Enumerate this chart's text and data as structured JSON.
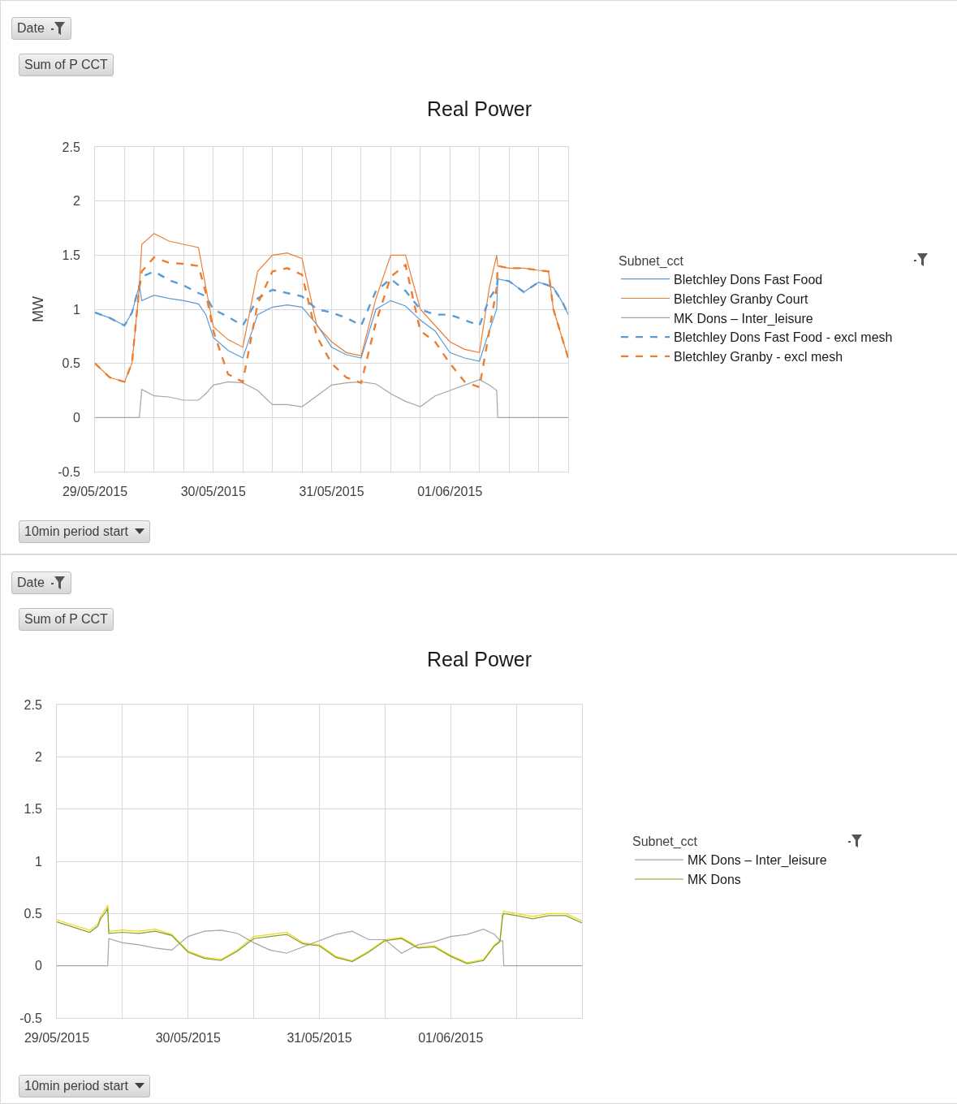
{
  "chart_data": [
    {
      "type": "line",
      "title": "Real Power",
      "ylabel": "MW",
      "legend_title": "Subnet_cct",
      "legend": "right",
      "grid": true,
      "annotations": [
        "Date",
        "Sum of P CCT",
        "10min period start"
      ],
      "x": [
        "2015-05-29T00:00",
        "2015-05-29T03:00",
        "2015-05-29T06:00",
        "2015-05-29T07:30",
        "2015-05-29T09:00",
        "2015-05-29T09:30",
        "2015-05-29T12:00",
        "2015-05-29T15:00",
        "2015-05-29T18:00",
        "2015-05-29T21:00",
        "2015-05-29T22:30",
        "2015-05-30T00:00",
        "2015-05-30T03:00",
        "2015-05-30T06:00",
        "2015-05-30T09:00",
        "2015-05-30T12:00",
        "2015-05-30T15:00",
        "2015-05-30T18:00",
        "2015-05-30T21:00",
        "2015-05-31T00:00",
        "2015-05-31T03:00",
        "2015-05-31T06:00",
        "2015-05-31T09:00",
        "2015-05-31T12:00",
        "2015-05-31T15:00",
        "2015-05-31T18:00",
        "2015-05-31T21:00",
        "2015-06-01T00:00",
        "2015-06-01T03:00",
        "2015-06-01T06:00",
        "2015-06-01T08:00",
        "2015-06-01T09:30",
        "2015-06-01T09:42",
        "2015-06-01T12:00",
        "2015-06-01T15:00",
        "2015-06-01T18:00",
        "2015-06-01T20:00",
        "2015-06-01T21:00",
        "2015-06-01T23:00",
        "2015-06-02T00:00"
      ],
      "xlim": [
        "2015-05-29T00:00",
        "2015-06-02T00:00"
      ],
      "xticks": [
        {
          "value": "2015-05-29T00:00",
          "label": "29/05/2015"
        },
        {
          "value": "2015-05-29T06:00",
          "label": null
        },
        {
          "value": "2015-05-29T12:00",
          "label": null
        },
        {
          "value": "2015-05-29T18:00",
          "label": null
        },
        {
          "value": "2015-05-30T00:00",
          "label": "30/05/2015"
        },
        {
          "value": "2015-05-30T06:00",
          "label": null
        },
        {
          "value": "2015-05-30T12:00",
          "label": null
        },
        {
          "value": "2015-05-30T18:00",
          "label": null
        },
        {
          "value": "2015-05-31T00:00",
          "label": "31/05/2015"
        },
        {
          "value": "2015-05-31T06:00",
          "label": null
        },
        {
          "value": "2015-05-31T12:00",
          "label": null
        },
        {
          "value": "2015-05-31T18:00",
          "label": null
        },
        {
          "value": "2015-06-01T00:00",
          "label": "01/06/2015"
        },
        {
          "value": "2015-06-01T06:00",
          "label": null
        },
        {
          "value": "2015-06-01T12:00",
          "label": null
        },
        {
          "value": "2015-06-01T18:00",
          "label": null
        },
        {
          "value": "2015-06-02T00:00",
          "label": null
        }
      ],
      "ylim": [
        -0.5,
        2.5
      ],
      "yticks": [
        -0.5,
        0,
        0.5,
        1,
        1.5,
        2,
        2.5
      ],
      "series": [
        {
          "name": "Bletchley Dons Fast Food",
          "color": "#5b9bd5",
          "line_style": "solid",
          "values": [
            0.97,
            0.92,
            0.85,
            0.97,
            1.22,
            1.08,
            1.13,
            1.1,
            1.08,
            1.05,
            0.95,
            0.74,
            0.62,
            0.55,
            0.95,
            1.02,
            1.04,
            1.02,
            0.86,
            0.65,
            0.58,
            0.55,
            1.0,
            1.08,
            1.03,
            0.9,
            0.8,
            0.6,
            0.55,
            0.52,
            0.8,
            1.0,
            1.28,
            1.26,
            1.16,
            1.25,
            1.22,
            1.2,
            1.05,
            0.95
          ]
        },
        {
          "name": "Bletchley Granby Court",
          "color": "#ed7d31",
          "line_style": "solid",
          "values": [
            0.5,
            0.37,
            0.33,
            0.5,
            1.2,
            1.6,
            1.7,
            1.63,
            1.6,
            1.57,
            1.2,
            0.84,
            0.72,
            0.65,
            1.35,
            1.5,
            1.52,
            1.47,
            0.85,
            0.7,
            0.6,
            0.57,
            1.1,
            1.5,
            1.5,
            1.0,
            0.85,
            0.7,
            0.63,
            0.6,
            1.2,
            1.5,
            1.4,
            1.38,
            1.38,
            1.36,
            1.35,
            1.0,
            0.7,
            0.55
          ]
        },
        {
          "name": "MK Dons – Inter_leisure",
          "color": "#a5a5a5",
          "line_style": "solid",
          "values": [
            0,
            0,
            0,
            0,
            0,
            0.26,
            0.2,
            0.19,
            0.16,
            0.16,
            0.22,
            0.3,
            0.33,
            0.32,
            0.25,
            0.12,
            0.12,
            0.1,
            0.2,
            0.3,
            0.32,
            0.33,
            0.31,
            0.22,
            0.15,
            0.1,
            0.2,
            0.25,
            0.3,
            0.35,
            0.3,
            0.25,
            0,
            0,
            0,
            0,
            0,
            0,
            0,
            0
          ]
        },
        {
          "name": "Bletchley Dons Fast Food - excl mesh",
          "color": "#5b9bd5",
          "line_style": "dashed",
          "values": [
            0.97,
            0.92,
            0.85,
            0.97,
            1.22,
            1.3,
            1.35,
            1.27,
            1.22,
            1.15,
            1.12,
            1.0,
            0.93,
            0.85,
            1.1,
            1.18,
            1.15,
            1.12,
            1.0,
            0.97,
            0.92,
            0.85,
            1.17,
            1.28,
            1.17,
            1.0,
            0.95,
            0.95,
            0.9,
            0.85,
            1.1,
            1.2,
            1.28,
            1.26,
            1.16,
            1.25,
            1.22,
            1.2,
            1.05,
            0.95
          ]
        },
        {
          "name": "Bletchley Granby - excl mesh",
          "color": "#ed7d31",
          "line_style": "dashed",
          "values": [
            0.5,
            0.37,
            0.33,
            0.5,
            1.2,
            1.35,
            1.48,
            1.43,
            1.42,
            1.4,
            1.15,
            0.8,
            0.4,
            0.33,
            1.05,
            1.35,
            1.38,
            1.32,
            0.75,
            0.5,
            0.37,
            0.32,
            0.88,
            1.3,
            1.41,
            0.8,
            0.7,
            0.5,
            0.33,
            0.28,
            0.8,
            1.2,
            1.4,
            1.38,
            1.38,
            1.36,
            1.35,
            1.0,
            0.7,
            0.55
          ]
        }
      ]
    },
    {
      "type": "line",
      "title": "Real Power",
      "legend_title": "Subnet_cct",
      "legend": "right",
      "grid": true,
      "annotations": [
        "Date",
        "Sum of P CCT",
        "10min period start"
      ],
      "x": [
        "2015-05-29T00:00",
        "2015-05-29T03:00",
        "2015-05-29T06:00",
        "2015-05-29T07:30",
        "2015-05-29T08:00",
        "2015-05-29T09:00",
        "2015-05-29T09:18",
        "2015-05-29T09:30",
        "2015-05-29T12:00",
        "2015-05-29T15:00",
        "2015-05-29T18:00",
        "2015-05-29T21:00",
        "2015-05-30T00:00",
        "2015-05-30T03:00",
        "2015-05-30T06:00",
        "2015-05-30T09:00",
        "2015-05-30T12:00",
        "2015-05-30T15:00",
        "2015-05-30T18:00",
        "2015-05-30T21:00",
        "2015-05-31T00:00",
        "2015-05-31T03:00",
        "2015-05-31T06:00",
        "2015-05-31T09:00",
        "2015-05-31T12:00",
        "2015-05-31T15:00",
        "2015-05-31T18:00",
        "2015-05-31T21:00",
        "2015-06-01T00:00",
        "2015-06-01T03:00",
        "2015-06-01T06:00",
        "2015-06-01T08:00",
        "2015-06-01T09:00",
        "2015-06-01T09:30",
        "2015-06-01T09:42",
        "2015-06-01T12:00",
        "2015-06-01T15:00",
        "2015-06-01T18:00",
        "2015-06-01T21:00",
        "2015-06-02T00:00"
      ],
      "xlim": [
        "2015-05-29T00:00",
        "2015-06-02T00:00"
      ],
      "xticks": [
        {
          "value": "2015-05-29T00:00",
          "label": "29/05/2015"
        },
        {
          "value": "2015-05-29T12:00",
          "label": null
        },
        {
          "value": "2015-05-30T00:00",
          "label": "30/05/2015"
        },
        {
          "value": "2015-05-30T12:00",
          "label": null
        },
        {
          "value": "2015-05-31T00:00",
          "label": "31/05/2015"
        },
        {
          "value": "2015-05-31T12:00",
          "label": null
        },
        {
          "value": "2015-06-01T00:00",
          "label": "01/06/2015"
        },
        {
          "value": "2015-06-01T12:00",
          "label": null
        },
        {
          "value": "2015-06-02T00:00",
          "label": null
        }
      ],
      "ylim": [
        -0.5,
        2.5
      ],
      "yticks": [
        -0.5,
        0,
        0.5,
        1,
        1.5,
        2,
        2.5
      ],
      "series": [
        {
          "color": "#f0d817",
          "line_style": "solid",
          "values": [
            0.44,
            0.39,
            0.34,
            0.4,
            0.47,
            0.55,
            0.58,
            0.33,
            0.34,
            0.33,
            0.35,
            0.3,
            0.14,
            0.08,
            0.06,
            0.15,
            0.28,
            0.3,
            0.32,
            0.22,
            0.2,
            0.09,
            0.05,
            0.14,
            0.25,
            0.27,
            0.18,
            0.19,
            0.1,
            0.03,
            0.06,
            0.2,
            0.24,
            0.5,
            0.52,
            0.5,
            0.47,
            0.5,
            0.5,
            0.43
          ]
        },
        {
          "name": "MK Dons – Inter_leisure",
          "color": "#a5a5a5",
          "line_style": "solid",
          "values": [
            0,
            0,
            0,
            0,
            0,
            0,
            0,
            0.26,
            0.22,
            0.2,
            0.17,
            0.15,
            0.28,
            0.33,
            0.34,
            0.31,
            0.22,
            0.15,
            0.12,
            0.18,
            0.24,
            0.3,
            0.33,
            0.25,
            0.25,
            0.12,
            0.2,
            0.23,
            0.28,
            0.3,
            0.35,
            0.3,
            0.24,
            0.24,
            0,
            0,
            0,
            0,
            0,
            0
          ]
        },
        {
          "name": "MK Dons",
          "color": "#7f9f2f",
          "line_style": "solid",
          "values": [
            0.42,
            0.37,
            0.32,
            0.38,
            0.45,
            0.52,
            0.55,
            0.31,
            0.32,
            0.31,
            0.33,
            0.29,
            0.13,
            0.07,
            0.05,
            0.14,
            0.26,
            0.28,
            0.3,
            0.21,
            0.19,
            0.08,
            0.04,
            0.13,
            0.24,
            0.26,
            0.17,
            0.18,
            0.09,
            0.02,
            0.05,
            0.19,
            0.23,
            0.48,
            0.5,
            0.48,
            0.45,
            0.48,
            0.48,
            0.41
          ]
        }
      ]
    }
  ]
}
